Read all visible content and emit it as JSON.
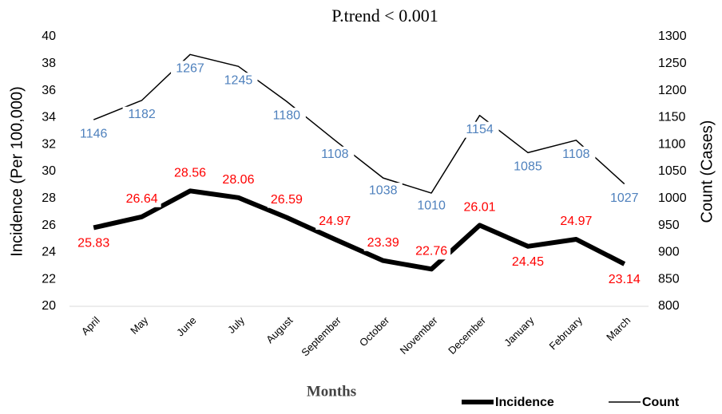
{
  "chart_data": {
    "type": "line",
    "title": "P.trend < 0.001",
    "x_label": "Months",
    "y_label": "Incidence (Per 100,000)",
    "y2_label": "Count (Cases)",
    "categories": [
      "April",
      "May",
      "June",
      "July",
      "August",
      "September",
      "October",
      "November",
      "December",
      "January",
      "February",
      "March"
    ],
    "series": [
      {
        "name": "Incidence",
        "color": "#000000",
        "label_color": "#ff0000",
        "values": [
          25.83,
          26.64,
          28.56,
          28.06,
          26.59,
          24.97,
          23.39,
          22.76,
          26.01,
          24.45,
          24.97,
          23.14
        ]
      },
      {
        "name": "Count",
        "color": "#000000",
        "label_color": "#4f81bd",
        "axis": "y2",
        "values": [
          1146,
          1182,
          1267,
          1245,
          1180,
          1108,
          1038,
          1010,
          1154,
          1085,
          1108,
          1027
        ]
      }
    ],
    "ylim": [
      20,
      40
    ],
    "yticks": [
      20,
      22,
      24,
      26,
      28,
      30,
      32,
      34,
      36,
      38,
      40
    ],
    "y2lim": [
      800,
      1300
    ],
    "y2ticks": [
      800,
      850,
      900,
      950,
      1000,
      1050,
      1100,
      1150,
      1200,
      1250,
      1300
    ],
    "grid": false,
    "legend": "bottom-right"
  }
}
